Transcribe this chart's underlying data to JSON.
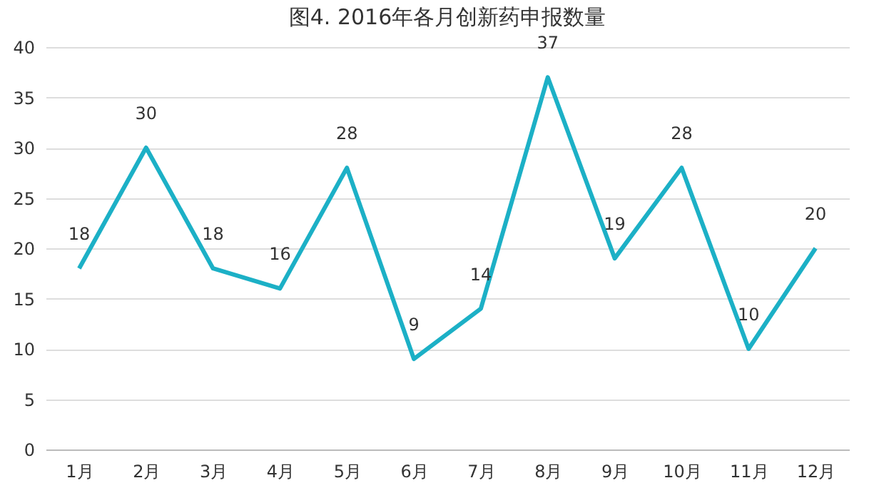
{
  "chart_data": {
    "type": "line",
    "title": "图4. 2016年各月创新药申报数量",
    "categories": [
      "1月",
      "2月",
      "3月",
      "4月",
      "5月",
      "6月",
      "7月",
      "8月",
      "9月",
      "10月",
      "11月",
      "12月"
    ],
    "series": [
      {
        "color": "#1cb0c6",
        "values": [
          18,
          30,
          18,
          16,
          28,
          9,
          14,
          37,
          19,
          28,
          10,
          20
        ]
      }
    ],
    "ylim": [
      0,
      40
    ],
    "yticks": [
      0,
      5,
      10,
      15,
      20,
      25,
      30,
      35,
      40
    ],
    "grid": "y",
    "data_labels": true,
    "legend": false,
    "marker": "none",
    "line_style": "solid"
  }
}
